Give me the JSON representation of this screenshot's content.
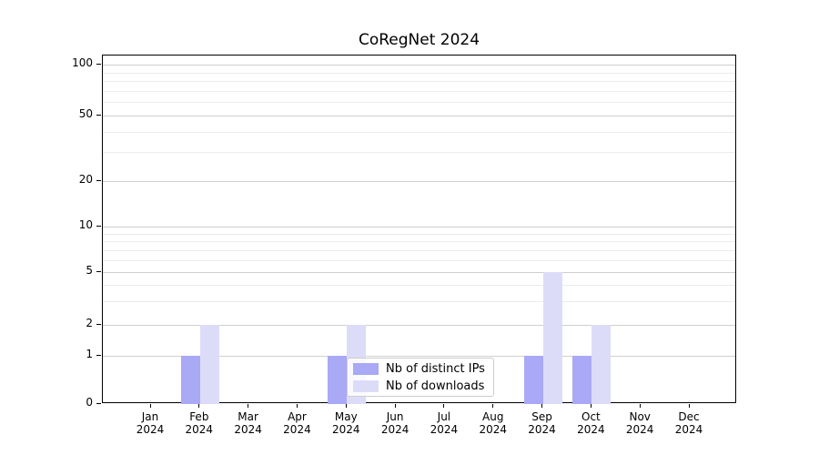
{
  "chart_data": {
    "type": "bar",
    "title": "CoRegNet 2024",
    "x_categories": [
      "Jan",
      "Feb",
      "Mar",
      "Apr",
      "May",
      "Jun",
      "Jul",
      "Aug",
      "Sep",
      "Oct",
      "Nov",
      "Dec"
    ],
    "x_year": "2024",
    "series": [
      {
        "name": "Nb of distinct IPs",
        "color": "#a9a9f6",
        "values": [
          0,
          1,
          0,
          0,
          1,
          0,
          0,
          0,
          1,
          1,
          0,
          0
        ]
      },
      {
        "name": "Nb of downloads",
        "color": "#dcdcf9",
        "values": [
          0,
          2,
          0,
          0,
          2,
          0,
          0,
          0,
          5,
          2,
          0,
          0
        ]
      }
    ],
    "y_scale": "symlog",
    "y_ticks": [
      100,
      50,
      20,
      10,
      5,
      2,
      1,
      0
    ],
    "y_minor_ticks": [
      3,
      4,
      6,
      7,
      8,
      9,
      30,
      40,
      60,
      70,
      80,
      90
    ],
    "ylim": [
      0,
      100
    ],
    "grid": true,
    "legend_position": "lower-center-inside"
  },
  "colors": {
    "grid_major": "#cfcfcf",
    "grid_minor": "#ececec",
    "spine": "#000000",
    "background": "#ffffff"
  }
}
